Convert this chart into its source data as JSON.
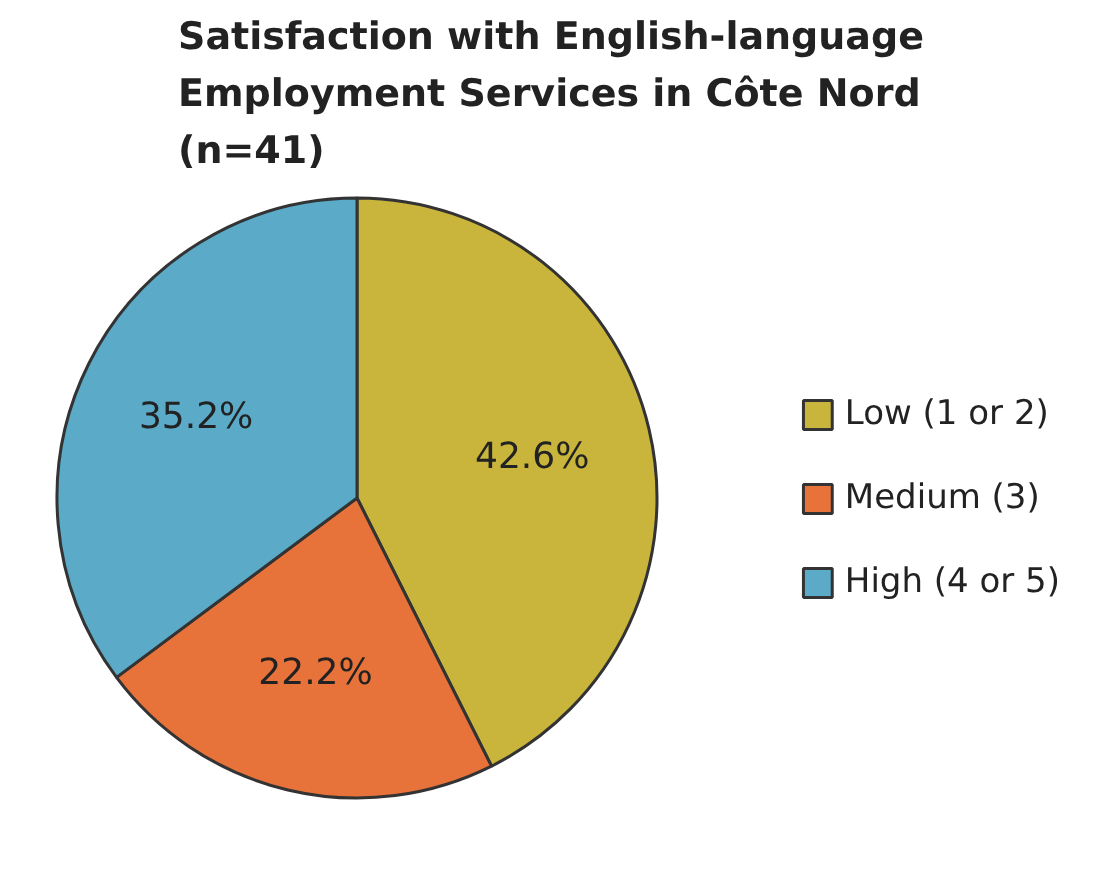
{
  "chart_data": {
    "type": "pie",
    "title": "Satisfaction with English-language\nEmployment Services in Côte Nord\n(n=41)",
    "categories": [
      "Low (1 or 2)",
      "Medium (3)",
      "High (4 or 5)"
    ],
    "values": [
      42.6,
      22.2,
      35.2
    ],
    "value_labels": [
      "42.6%",
      "22.2%",
      "35.2%"
    ],
    "colors": [
      "#c9b43c",
      "#e8733a",
      "#5aaac8"
    ],
    "legend": "right"
  }
}
